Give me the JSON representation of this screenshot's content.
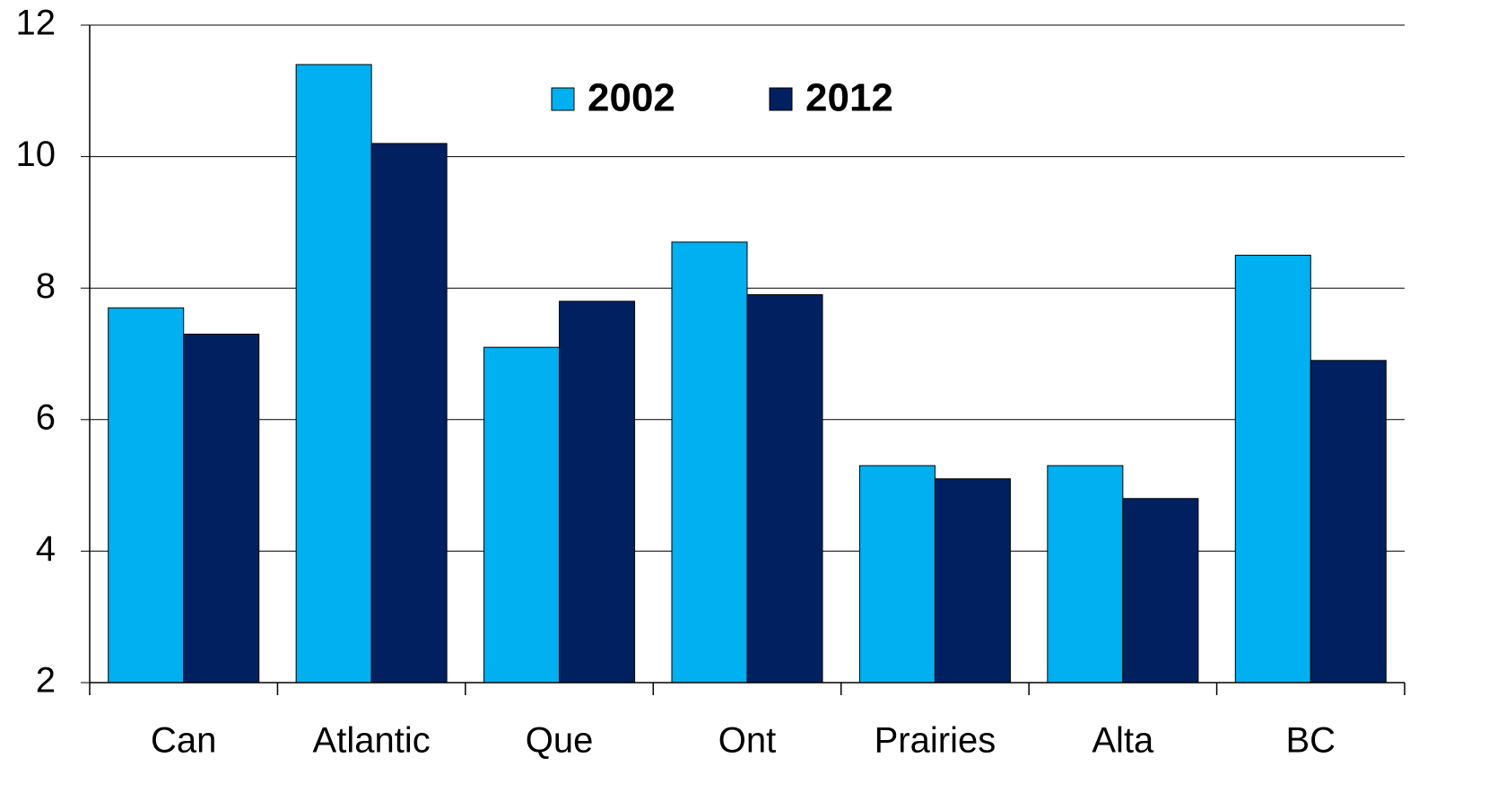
{
  "chart_data": {
    "type": "bar",
    "categories": [
      "Can",
      "Atlantic",
      "Que",
      "Ont",
      "Prairies",
      "Alta",
      "BC"
    ],
    "series": [
      {
        "name": "2002",
        "color": "#00b0f0",
        "values": [
          7.7,
          11.4,
          7.1,
          8.7,
          5.3,
          5.3,
          8.5
        ]
      },
      {
        "name": "2012",
        "color": "#002060",
        "values": [
          7.3,
          10.2,
          7.8,
          7.9,
          5.1,
          4.8,
          6.9
        ]
      }
    ],
    "ylim": [
      2,
      12
    ],
    "yticks": [
      2,
      4,
      6,
      8,
      10,
      12
    ],
    "grid": true,
    "legend": "top"
  }
}
